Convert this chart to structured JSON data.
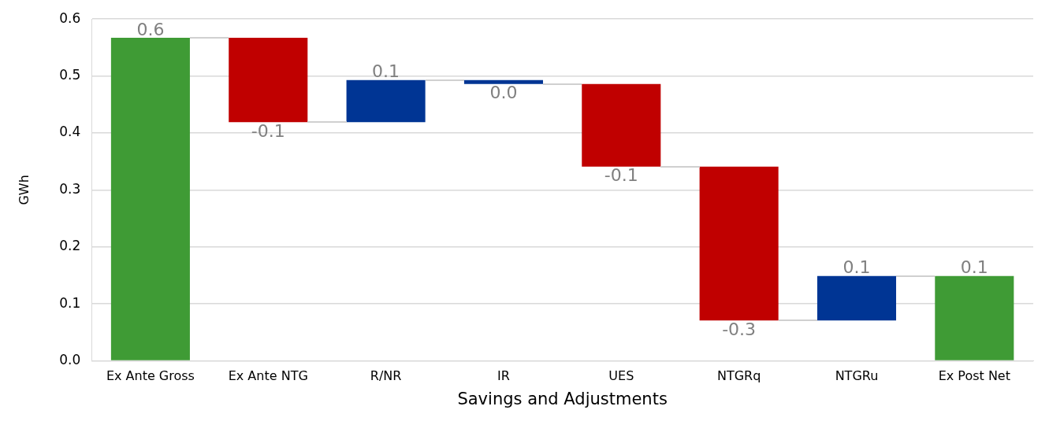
{
  "chart_data": {
    "type": "bar",
    "xlabel": "Savings and Adjustments",
    "ylabel": "GWh",
    "categories": [
      "Ex Ante Gross",
      "Ex Ante NTG",
      "R/NR",
      "IR",
      "UES",
      "NTGRq",
      "NTGRu",
      "Ex Post Net"
    ],
    "values": [
      0.567,
      -0.148,
      0.074,
      -0.007,
      -0.145,
      -0.27,
      0.078,
      0.149
    ],
    "base": [
      0,
      0.567,
      0.419,
      0.493,
      0.486,
      0.341,
      0.071,
      0
    ],
    "colors": [
      "#3f9b35",
      "#c00000",
      "#003594",
      "#003594",
      "#c00000",
      "#c00000",
      "#003594",
      "#3f9b35"
    ],
    "value_labels": [
      "0.6",
      "-0.1",
      "0.1",
      "0.0",
      "-0.1",
      "-0.3",
      "0.1",
      "0.1"
    ],
    "ylim": [
      0,
      0.6
    ],
    "yticks": [
      {
        "value": 0,
        "label": "0.0"
      },
      0.1,
      0.2,
      0.3,
      0.4,
      0.5,
      0.6
    ],
    "grid": "y",
    "legend": false
  }
}
